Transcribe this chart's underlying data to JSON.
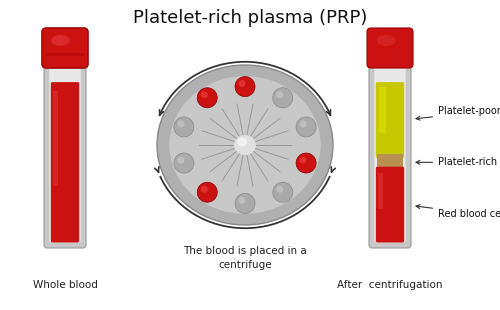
{
  "title": "Platelet-rich plasma (PRP)",
  "title_fontsize": 13,
  "background_color": "#ffffff",
  "label_whole_blood": "Whole blood",
  "label_centrifuge": "The blood is placed in a\ncentrifuge",
  "label_after": "After  centrifugation",
  "label_ppp": "Platelet-poor plasma",
  "label_prp": "Platelet-rich plasma",
  "label_rbc": "Red blood cells",
  "red_color": "#cc1111",
  "red_dark": "#aa0000",
  "cap_color": "#cc1111",
  "cap_dark": "#990000",
  "tube_outer": "#c8c8c8",
  "tube_inner": "#e8e8e8",
  "yellow_color": "#c8c800",
  "yellow_light": "#dede00",
  "tan_color": "#b89050",
  "gray_ball": "#aaaaaa",
  "gray_ball_dark": "#888888",
  "centrifuge_bg": "#b0b0b0",
  "centrifuge_inner": "#c8c8c8",
  "spoke_color": "#909090",
  "arrow_color": "#333333",
  "text_color": "#222222"
}
